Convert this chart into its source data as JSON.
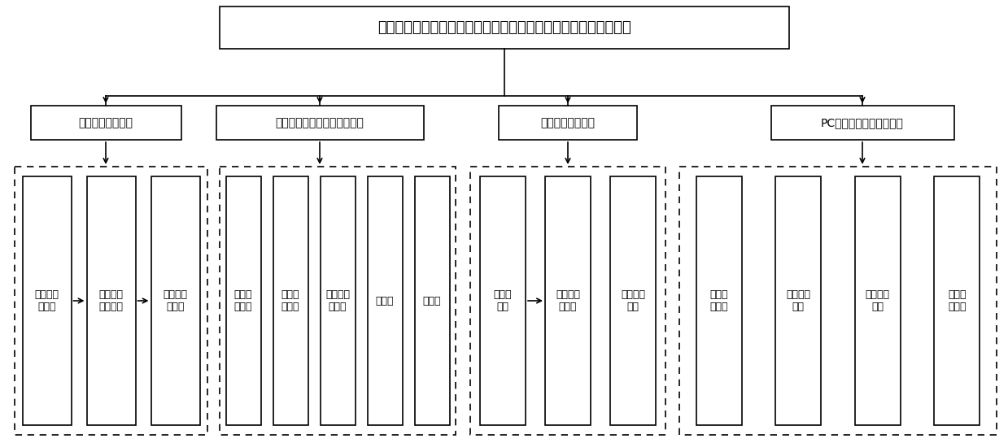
{
  "title": "基于六维力传感器的小型旋翼无人机三轴陀螺仪结构测试分析平台",
  "level2_labels": [
    "六自由度机械结构",
    "多源异构异步传感器融合算法",
    "测试平台控制模块",
    "PC端数据融合与分析模块"
  ],
  "group1_items": [
    "三轴陀螺\n仪机构",
    "力传感器\n固定机构",
    "底座围角\n钢框架"
  ],
  "group2_items": [
    "六维力\n传感器",
    "微惯性\n传感器",
    "智能电源\n传感器",
    "气压计",
    "空速计"
  ],
  "group3_items": [
    "飞行控\n制器",
    "地面站控\n制平台",
    "通信组网\n协议"
  ],
  "group4_items": [
    "多源数\n据同步",
    "数据关联\n存储",
    "数据误差\n建模",
    "飞行状\n态估计"
  ],
  "bg_color": "#ffffff",
  "box_facecolor": "#ffffff",
  "box_edgecolor": "#000000"
}
